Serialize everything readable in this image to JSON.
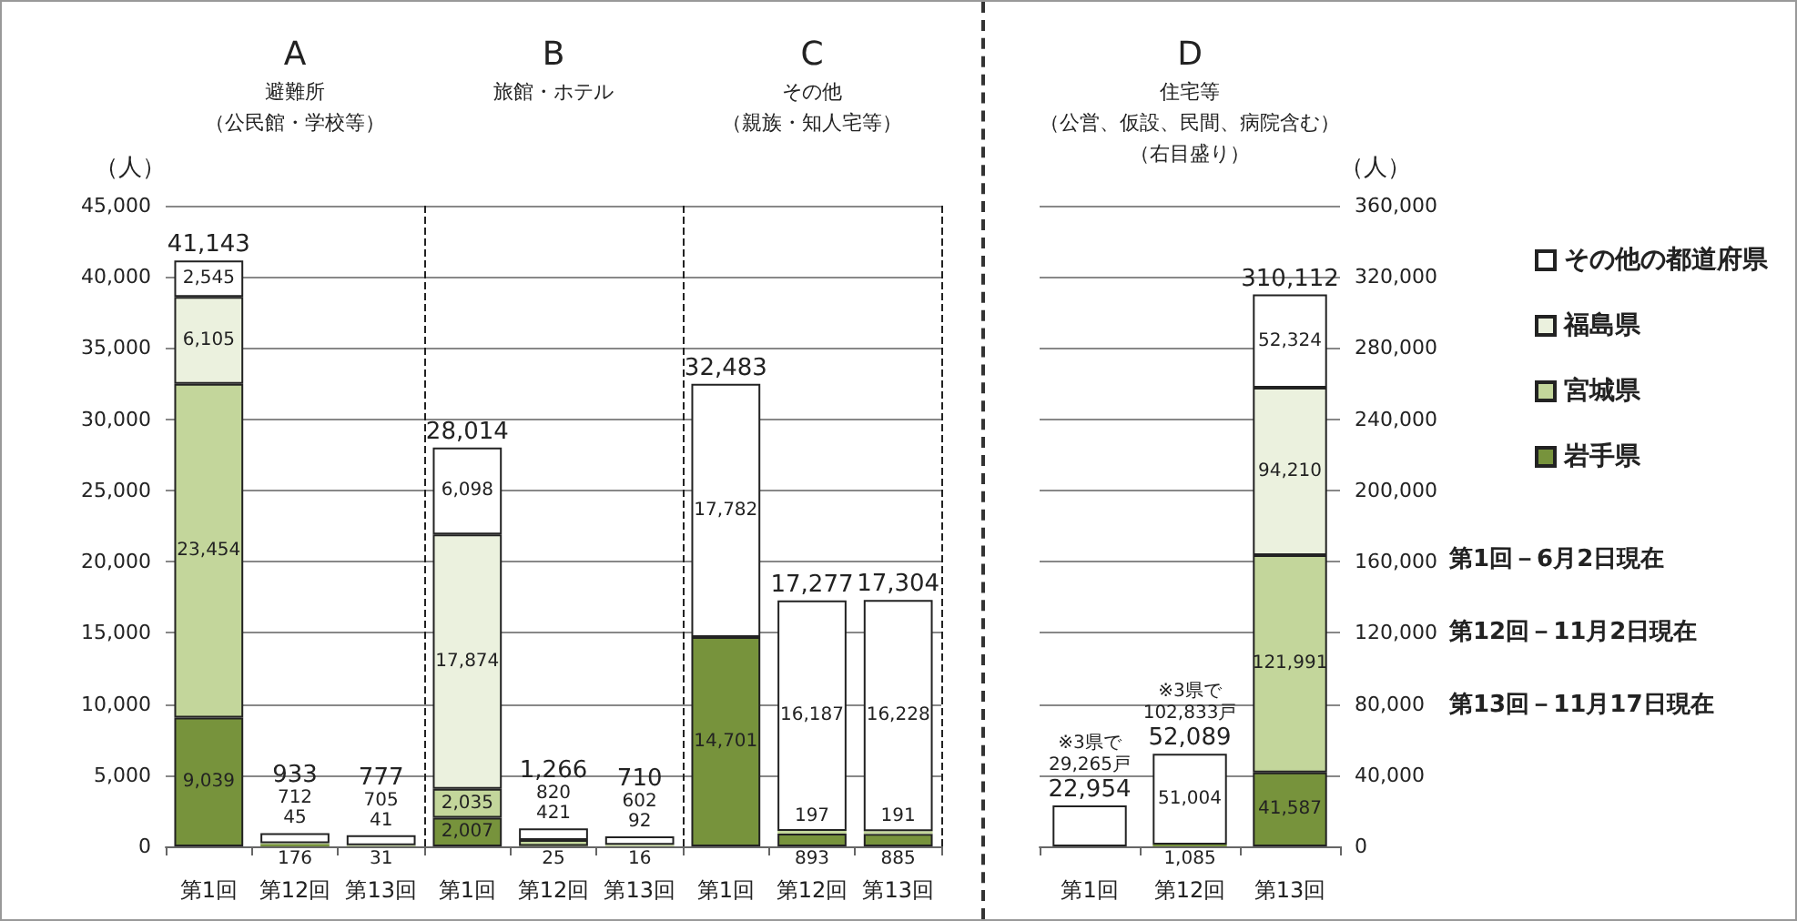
{
  "chart_data": [
    {
      "type": "bar",
      "stacked": true,
      "ylabel": "（人）",
      "categories": [
        "第1回",
        "第12回",
        "第13回",
        "第1回",
        "第12回",
        "第13回",
        "第1回",
        "第12回",
        "第13回"
      ],
      "annotations": [
        "A",
        "避難所",
        "（公民館・学校等）",
        "B",
        "旅館・ホテル",
        "C",
        "その他",
        "（親族・知人宅等）"
      ],
      "series": [
        {
          "color": "#77933c",
          "values": [
            9039,
            176,
            31,
            2007,
            25,
            16,
            14701,
            893,
            885
          ],
          "value_labels": [
            "9,039",
            "176",
            "31",
            "2,007",
            "25",
            "16",
            "14,701",
            "893",
            "885"
          ]
        },
        {
          "color": "#c3d69b",
          "values": [
            23454,
            45,
            41,
            2035,
            421,
            92,
            null,
            197,
            191
          ],
          "value_labels": [
            "23,454",
            "45",
            "41",
            "2,035",
            "421",
            "92",
            null,
            "197",
            "191"
          ]
        },
        {
          "color": "#ebf1de",
          "values": [
            6105,
            null,
            null,
            17874,
            null,
            null,
            null,
            null,
            null
          ],
          "value_labels": [
            "6,105",
            null,
            null,
            "17,874",
            null,
            null,
            null,
            null,
            null
          ]
        },
        {
          "color": "#ffffff",
          "values": [
            2545,
            712,
            705,
            6098,
            820,
            602,
            17782,
            16187,
            16228
          ],
          "value_labels": [
            "2,545",
            "712",
            "705",
            "6,098",
            "820",
            "602",
            "17,782",
            "16,187",
            "16,228"
          ]
        }
      ],
      "totals": [
        "41,143",
        "933",
        "777",
        "28,014",
        "1,266",
        "710",
        "32,483",
        "17,277",
        "17,304"
      ],
      "ylim": [
        0,
        45000
      ],
      "yticks": [
        {
          "value": 0,
          "label": "0"
        },
        {
          "value": 5000,
          "label": "5,000"
        },
        {
          "value": 10000,
          "label": "10,000"
        },
        {
          "value": 15000,
          "label": "15,000"
        },
        {
          "value": 20000,
          "label": "20,000"
        },
        {
          "value": 25000,
          "label": "25,000"
        },
        {
          "value": 30000,
          "label": "30,000"
        },
        {
          "value": 35000,
          "label": "35,000"
        },
        {
          "value": 40000,
          "label": "40,000"
        },
        {
          "value": 45000,
          "label": "45,000"
        }
      ],
      "grid": "y",
      "legend": false
    },
    {
      "type": "bar",
      "stacked": true,
      "y2label": "（人）",
      "categories": [
        "第1回",
        "第12回",
        "第13回"
      ],
      "annotations": [
        "D",
        "住宅等",
        "（公営、仮設、民間、病院含む）",
        "（右目盛り）",
        "※3県で",
        "29,265戸",
        "※3県で",
        "102,833戸",
        "第1回－6月2日現在",
        "第12回－11月2日現在",
        "第13回－11月17日現在"
      ],
      "series": [
        {
          "name": "岩手県",
          "color": "#77933c",
          "axis": "y2",
          "values": [
            null,
            1085,
            41587
          ],
          "value_labels": [
            null,
            "1,085",
            "41,587"
          ]
        },
        {
          "name": "宮城県",
          "color": "#c3d69b",
          "axis": "y2",
          "values": [
            null,
            null,
            121991
          ],
          "value_labels": [
            null,
            null,
            "121,991"
          ]
        },
        {
          "name": "福島県",
          "color": "#ebf1de",
          "axis": "y2",
          "values": [
            null,
            null,
            94210
          ],
          "value_labels": [
            null,
            null,
            "94,210"
          ]
        },
        {
          "name": "その他の都道府県",
          "color": "#ffffff",
          "axis": "y2",
          "values": [
            22954,
            51004,
            52324
          ],
          "value_labels": [
            null,
            "51,004",
            "52,324"
          ]
        }
      ],
      "totals": [
        "22,954",
        "52,089",
        "310,112"
      ],
      "y2lim": [
        0,
        360000
      ],
      "y2ticks": [
        {
          "value": 0,
          "label": "0"
        },
        {
          "value": 40000,
          "label": "40,000"
        },
        {
          "value": 80000,
          "label": "80,000"
        },
        {
          "value": 120000,
          "label": "120,000"
        },
        {
          "value": 160000,
          "label": "160,000"
        },
        {
          "value": 200000,
          "label": "200,000"
        },
        {
          "value": 240000,
          "label": "240,000"
        },
        {
          "value": 280000,
          "label": "280,000"
        },
        {
          "value": 320000,
          "label": "320,000"
        },
        {
          "value": 360000,
          "label": "360,000"
        }
      ],
      "grid": "y",
      "legend": "right"
    }
  ]
}
